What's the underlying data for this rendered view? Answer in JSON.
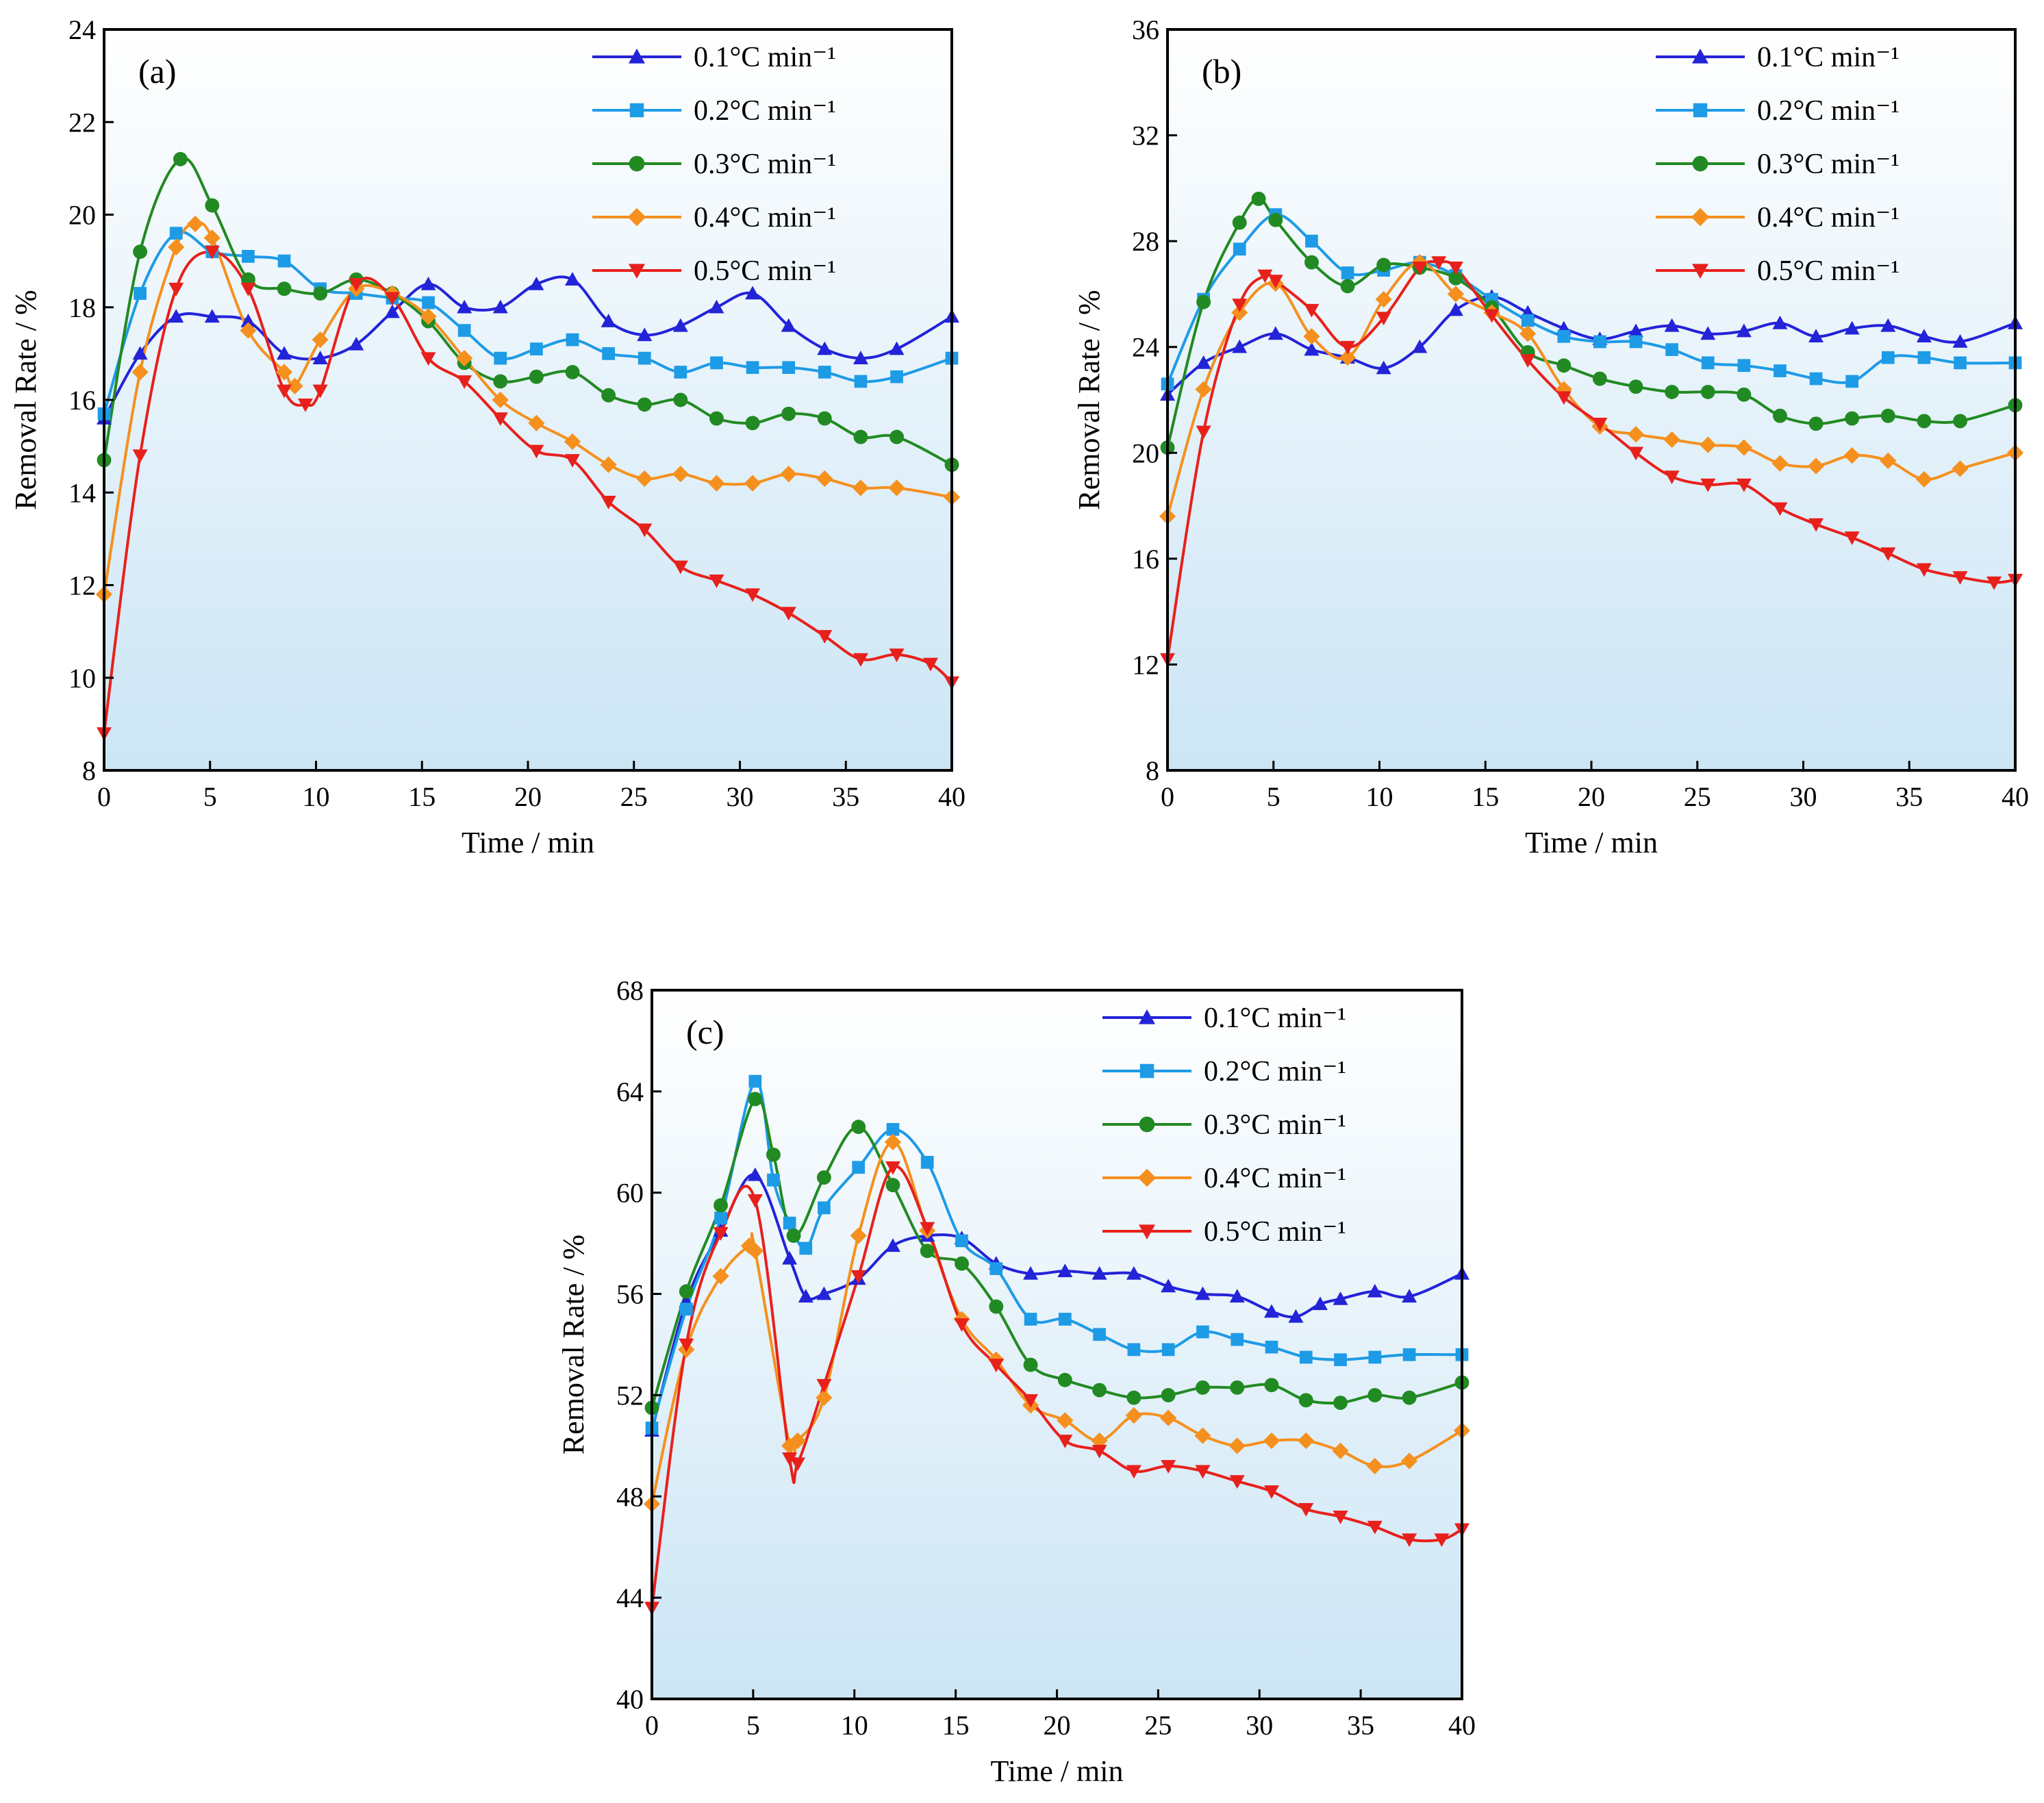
{
  "chart_data": [
    {
      "type": "line",
      "panel_label": "(a)",
      "xlabel": "Time / min",
      "ylabel": "Removal Rate / %",
      "xlim": [
        0,
        40
      ],
      "ylim": [
        8,
        24
      ],
      "xticks": [
        0,
        5,
        10,
        15,
        20,
        25,
        30,
        35,
        40
      ],
      "yticks": [
        8,
        10,
        12,
        14,
        16,
        18,
        20,
        22,
        24
      ],
      "legend_position": "top-right",
      "series": [
        {
          "name": "0.1°C min⁻¹",
          "color": "#2323d8",
          "marker": "triangle-up",
          "x": [
            0,
            1.7,
            3.4,
            5.1,
            6.8,
            8.5,
            10.2,
            11.9,
            13.6,
            15.3,
            17,
            18.7,
            20.4,
            22.1,
            23.8,
            25.5,
            27.2,
            28.9,
            30.6,
            32.3,
            34,
            35.7,
            37.4,
            40
          ],
          "y": [
            15.6,
            17.0,
            17.8,
            17.8,
            17.7,
            17.0,
            16.9,
            17.2,
            17.9,
            18.5,
            18.0,
            18.0,
            18.5,
            18.6,
            17.7,
            17.4,
            17.6,
            18.0,
            18.3,
            17.6,
            17.1,
            16.9,
            17.1,
            17.8
          ]
        },
        {
          "name": "0.2°C min⁻¹",
          "color": "#1e9be6",
          "marker": "square",
          "x": [
            0,
            1.7,
            3.4,
            5.1,
            6.8,
            8.5,
            10.2,
            11.9,
            13.6,
            15.3,
            17,
            18.7,
            20.4,
            22.1,
            23.8,
            25.5,
            27.2,
            28.9,
            30.6,
            32.3,
            34,
            35.7,
            37.4,
            40
          ],
          "y": [
            15.7,
            18.3,
            19.6,
            19.2,
            19.1,
            19.0,
            18.4,
            18.3,
            18.2,
            18.1,
            17.5,
            16.9,
            17.1,
            17.3,
            17.0,
            16.9,
            16.6,
            16.8,
            16.7,
            16.7,
            16.6,
            16.4,
            16.5,
            16.9
          ]
        },
        {
          "name": "0.3°C min⁻¹",
          "color": "#228a22",
          "marker": "circle",
          "x": [
            0,
            1.7,
            3.6,
            5.1,
            6.8,
            8.5,
            10.2,
            11.9,
            13.6,
            15.3,
            17,
            18.7,
            20.4,
            22.1,
            23.8,
            25.5,
            27.2,
            28.9,
            30.6,
            32.3,
            34,
            35.7,
            37.4,
            40
          ],
          "y": [
            14.7,
            19.2,
            21.2,
            20.2,
            18.6,
            18.4,
            18.3,
            18.6,
            18.3,
            17.7,
            16.8,
            16.4,
            16.5,
            16.6,
            16.1,
            15.9,
            16.0,
            15.6,
            15.5,
            15.7,
            15.6,
            15.2,
            15.2,
            14.6
          ]
        },
        {
          "name": "0.4°C min⁻¹",
          "color": "#f5901e",
          "marker": "diamond",
          "x": [
            0,
            1.7,
            3.4,
            4.3,
            5.1,
            6.8,
            8.5,
            9.0,
            10.2,
            11.9,
            13.6,
            15.3,
            17,
            18.7,
            20.4,
            22.1,
            23.8,
            25.5,
            27.2,
            28.9,
            30.6,
            32.3,
            34,
            35.7,
            37.4,
            40
          ],
          "y": [
            11.8,
            16.6,
            19.3,
            19.8,
            19.5,
            17.5,
            16.6,
            16.3,
            17.3,
            18.4,
            18.3,
            17.8,
            16.9,
            16.0,
            15.5,
            15.1,
            14.6,
            14.3,
            14.4,
            14.2,
            14.2,
            14.4,
            14.3,
            14.1,
            14.1,
            13.9
          ]
        },
        {
          "name": "0.5°C min⁻¹",
          "color": "#e8201c",
          "marker": "triangle-down",
          "x": [
            0,
            1.7,
            3.4,
            5.1,
            6.8,
            8.5,
            9.5,
            10.2,
            11.9,
            13.6,
            15.3,
            17,
            18.7,
            20.4,
            22.1,
            23.8,
            25.5,
            27.2,
            28.9,
            30.6,
            32.3,
            34,
            35.7,
            37.4,
            39.0,
            40
          ],
          "y": [
            8.8,
            14.8,
            18.4,
            19.2,
            18.4,
            16.2,
            15.9,
            16.2,
            18.5,
            18.2,
            16.9,
            16.4,
            15.6,
            14.9,
            14.7,
            13.8,
            13.2,
            12.4,
            12.1,
            11.8,
            11.4,
            10.9,
            10.4,
            10.5,
            10.3,
            9.9
          ]
        }
      ]
    },
    {
      "type": "line",
      "panel_label": "(b)",
      "xlabel": "Time / min",
      "ylabel": "Removal Rate / %",
      "xlim": [
        0,
        40
      ],
      "ylim": [
        8,
        36
      ],
      "xticks": [
        0,
        5,
        10,
        15,
        20,
        25,
        30,
        35,
        40
      ],
      "yticks": [
        8,
        12,
        16,
        20,
        24,
        28,
        32,
        36
      ],
      "legend_position": "top-right",
      "series": [
        {
          "name": "0.1°C min⁻¹",
          "color": "#2323d8",
          "marker": "triangle-up",
          "x": [
            0,
            1.7,
            3.4,
            5.1,
            6.8,
            8.5,
            10.2,
            11.9,
            13.6,
            15.3,
            17,
            18.7,
            20.4,
            22.1,
            23.8,
            25.5,
            27.2,
            28.9,
            30.6,
            32.3,
            34,
            35.7,
            37.4,
            40
          ],
          "y": [
            22.2,
            23.4,
            24.0,
            24.5,
            23.9,
            23.6,
            23.2,
            24.0,
            25.4,
            25.9,
            25.3,
            24.7,
            24.3,
            24.6,
            24.8,
            24.5,
            24.6,
            24.9,
            24.4,
            24.7,
            24.8,
            24.4,
            24.2,
            24.9
          ]
        },
        {
          "name": "0.2°C min⁻¹",
          "color": "#1e9be6",
          "marker": "square",
          "x": [
            0,
            1.7,
            3.4,
            5.1,
            6.8,
            8.5,
            10.2,
            11.9,
            13.6,
            15.3,
            17,
            18.7,
            20.4,
            22.1,
            23.8,
            25.5,
            27.2,
            28.9,
            30.6,
            32.3,
            34,
            35.7,
            37.4,
            40
          ],
          "y": [
            22.6,
            25.8,
            27.7,
            29.0,
            28.0,
            26.8,
            26.9,
            27.2,
            26.7,
            25.8,
            25.0,
            24.4,
            24.2,
            24.2,
            23.9,
            23.4,
            23.3,
            23.1,
            22.8,
            22.7,
            23.6,
            23.6,
            23.4,
            23.4
          ]
        },
        {
          "name": "0.3°C min⁻¹",
          "color": "#228a22",
          "marker": "circle",
          "x": [
            0,
            1.7,
            3.4,
            4.3,
            5.1,
            6.8,
            8.5,
            10.2,
            11.9,
            13.6,
            15.3,
            17,
            18.7,
            20.4,
            22.1,
            23.8,
            25.5,
            27.2,
            28.9,
            30.6,
            32.3,
            34,
            35.7,
            37.4,
            40
          ],
          "y": [
            20.2,
            25.7,
            28.7,
            29.6,
            28.8,
            27.2,
            26.3,
            27.1,
            27.0,
            26.6,
            25.5,
            23.8,
            23.3,
            22.8,
            22.5,
            22.3,
            22.3,
            22.2,
            21.4,
            21.1,
            21.3,
            21.4,
            21.2,
            21.2,
            21.8
          ]
        },
        {
          "name": "0.4°C min⁻¹",
          "color": "#f5901e",
          "marker": "diamond",
          "x": [
            0,
            1.7,
            3.4,
            5.1,
            6.8,
            8.5,
            10.2,
            11.9,
            13.6,
            15.3,
            17,
            18.7,
            20.4,
            22.1,
            23.8,
            25.5,
            27.2,
            28.9,
            30.6,
            32.3,
            34,
            35.7,
            37.4,
            40
          ],
          "y": [
            17.6,
            22.4,
            25.3,
            26.4,
            24.4,
            23.6,
            25.8,
            27.2,
            26.0,
            25.3,
            24.5,
            22.4,
            21.0,
            20.7,
            20.5,
            20.3,
            20.2,
            19.6,
            19.5,
            19.9,
            19.7,
            19.0,
            19.4,
            20.0
          ]
        },
        {
          "name": "0.5°C min⁻¹",
          "color": "#e8201c",
          "marker": "triangle-down",
          "x": [
            0,
            1.7,
            3.4,
            4.6,
            5.1,
            6.8,
            8.5,
            10.2,
            11.9,
            12.8,
            13.6,
            15.3,
            17,
            18.7,
            20.4,
            22.1,
            23.8,
            25.5,
            27.2,
            28.9,
            30.6,
            32.3,
            34,
            35.7,
            37.4,
            39.0,
            40
          ],
          "y": [
            12.2,
            20.8,
            25.6,
            26.7,
            26.5,
            25.4,
            24.0,
            25.1,
            27.0,
            27.2,
            27.0,
            25.2,
            23.5,
            22.1,
            21.1,
            20.0,
            19.1,
            18.8,
            18.8,
            17.9,
            17.3,
            16.8,
            16.2,
            15.6,
            15.3,
            15.1,
            15.2
          ]
        }
      ]
    },
    {
      "type": "line",
      "panel_label": "(c)",
      "xlabel": "Time / min",
      "ylabel": "Removal Rate / %",
      "xlim": [
        0,
        40
      ],
      "ylim": [
        40,
        68
      ],
      "xticks": [
        0,
        5,
        10,
        15,
        20,
        25,
        30,
        35,
        40
      ],
      "yticks": [
        40,
        44,
        48,
        52,
        56,
        60,
        64,
        68
      ],
      "legend_position": "top-right",
      "series": [
        {
          "name": "0.1°C min⁻¹",
          "color": "#2323d8",
          "marker": "triangle-up",
          "x": [
            0,
            1.7,
            3.4,
            5.1,
            6.8,
            7.6,
            8.5,
            10.2,
            11.9,
            13.6,
            15.3,
            17,
            18.7,
            20.4,
            22.1,
            23.8,
            25.5,
            27.2,
            28.9,
            30.6,
            31.8,
            33.0,
            34,
            35.7,
            37.4,
            40
          ],
          "y": [
            50.6,
            55.7,
            58.5,
            60.7,
            57.4,
            55.9,
            56.0,
            56.6,
            57.9,
            58.3,
            58.2,
            57.2,
            56.8,
            56.9,
            56.8,
            56.8,
            56.3,
            56.0,
            55.9,
            55.3,
            55.1,
            55.6,
            55.8,
            56.1,
            55.9,
            56.8
          ]
        },
        {
          "name": "0.2°C min⁻¹",
          "color": "#1e9be6",
          "marker": "square",
          "x": [
            0,
            1.7,
            3.4,
            5.1,
            6.0,
            6.8,
            7.6,
            8.5,
            10.2,
            11.9,
            13.6,
            15.3,
            17,
            18.7,
            20.4,
            22.1,
            23.8,
            25.5,
            27.2,
            28.9,
            30.6,
            32.3,
            34,
            35.7,
            37.4,
            40
          ],
          "y": [
            50.7,
            55.4,
            59.0,
            64.4,
            60.5,
            58.8,
            57.8,
            59.4,
            61.0,
            62.5,
            61.2,
            58.1,
            57.0,
            55.0,
            55.0,
            54.4,
            53.8,
            53.8,
            54.5,
            54.2,
            53.9,
            53.5,
            53.4,
            53.5,
            53.6,
            53.6
          ]
        },
        {
          "name": "0.3°C min⁻¹",
          "color": "#228a22",
          "marker": "circle",
          "x": [
            0,
            1.7,
            3.4,
            5.1,
            6.0,
            7.0,
            8.5,
            10.2,
            11.9,
            13.6,
            15.3,
            17,
            18.7,
            20.4,
            22.1,
            23.8,
            25.5,
            27.2,
            28.9,
            30.6,
            32.3,
            34,
            35.7,
            37.4,
            40
          ],
          "y": [
            51.5,
            56.1,
            59.5,
            63.7,
            61.5,
            58.3,
            60.6,
            62.6,
            60.3,
            57.7,
            57.2,
            55.5,
            53.2,
            52.6,
            52.2,
            51.9,
            52.0,
            52.3,
            52.3,
            52.4,
            51.8,
            51.7,
            52.0,
            51.9,
            52.5
          ]
        },
        {
          "name": "0.4°C min⁻¹",
          "color": "#f5901e",
          "marker": "diamond",
          "x": [
            0,
            1.7,
            3.4,
            4.8,
            5.1,
            6.8,
            7.2,
            8.5,
            10.2,
            11.9,
            13.6,
            15.3,
            17,
            18.7,
            20.4,
            22.1,
            23.8,
            25.5,
            27.2,
            28.9,
            30.6,
            32.3,
            34,
            35.7,
            37.4,
            40
          ],
          "y": [
            47.7,
            53.8,
            56.7,
            57.9,
            57.7,
            50.0,
            50.2,
            51.9,
            58.3,
            62.0,
            58.5,
            55.0,
            53.4,
            51.6,
            51.0,
            50.2,
            51.2,
            51.1,
            50.4,
            50.0,
            50.2,
            50.2,
            49.8,
            49.2,
            49.4,
            50.6
          ]
        },
        {
          "name": "0.5°C min⁻¹",
          "color": "#e8201c",
          "marker": "triangle-down",
          "x": [
            0,
            1.7,
            3.4,
            5.1,
            6.8,
            7.2,
            8.5,
            10.2,
            11.9,
            13.6,
            15.3,
            17,
            18.7,
            20.4,
            22.1,
            23.8,
            25.5,
            27.2,
            28.9,
            30.6,
            32.3,
            34,
            35.7,
            37.4,
            39.0,
            40
          ],
          "y": [
            43.6,
            54.0,
            58.4,
            59.7,
            49.5,
            49.3,
            52.4,
            56.7,
            61.0,
            58.6,
            54.8,
            53.2,
            51.8,
            50.2,
            49.8,
            49.0,
            49.2,
            49.0,
            48.6,
            48.2,
            47.5,
            47.2,
            46.8,
            46.3,
            46.3,
            46.7
          ]
        }
      ]
    }
  ]
}
